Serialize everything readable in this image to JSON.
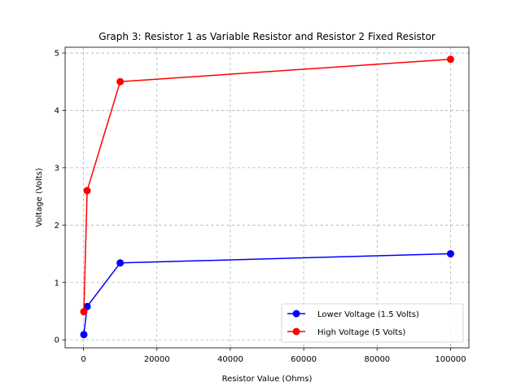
{
  "chart_data": {
    "type": "line",
    "title": "Graph 3: Resistor 1 as Variable Resistor and Resistor 2 Fixed Resistor",
    "xlabel": "Resistor Value (Ohms)",
    "ylabel": "Voltage (Volts)",
    "xlim": [
      -5000,
      105000
    ],
    "ylim": [
      -0.14,
      5.1
    ],
    "xticks": [
      0,
      20000,
      40000,
      60000,
      80000,
      100000
    ],
    "yticks": [
      0,
      1,
      2,
      3,
      4,
      5
    ],
    "grid": true,
    "legend_position": "lower-right",
    "series": [
      {
        "name": "Lower Voltage (1.5 Volts)",
        "color": "#0000ff",
        "marker": "circle",
        "x": [
          100,
          1000,
          10000,
          100000
        ],
        "y": [
          0.09,
          0.58,
          1.34,
          1.5
        ]
      },
      {
        "name": "High Voltage (5 Volts)",
        "color": "#ff0000",
        "marker": "circle",
        "x": [
          100,
          1000,
          10000,
          100000
        ],
        "y": [
          0.49,
          2.6,
          4.5,
          4.89
        ]
      }
    ]
  }
}
